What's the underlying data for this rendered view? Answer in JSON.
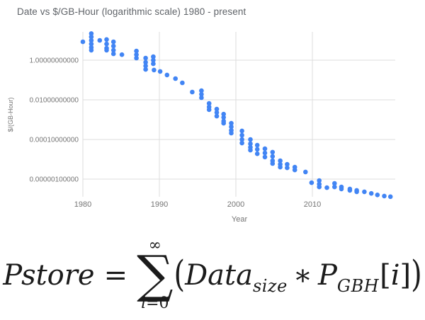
{
  "chart_data": {
    "type": "scatter",
    "title": "Date vs $/GB-Hour (logarithmic scale) 1980 - present",
    "xlabel": "Year",
    "ylabel": "$/(GB-Hour)",
    "legend": "none",
    "grid": true,
    "x_axis": {
      "min": 1980,
      "max": 2021,
      "ticks": [
        1980,
        1990,
        2000,
        2010
      ]
    },
    "y_axis": {
      "scale": "log",
      "min": 1e-07,
      "max": 30,
      "ticks": [
        {
          "value": 1,
          "label": "1.00000000000"
        },
        {
          "value": 0.01,
          "label": "0.01000000000"
        },
        {
          "value": 0.0001,
          "label": "0.00010000000"
        },
        {
          "value": 1e-06,
          "label": "0.00000100000"
        }
      ]
    },
    "series": [
      {
        "name": "$/GB-Hour",
        "color": "#4285f4",
        "points": [
          [
            1980.0,
            8.5
          ],
          [
            1981.1,
            22
          ],
          [
            1981.1,
            15
          ],
          [
            1981.1,
            10
          ],
          [
            1981.1,
            6.6
          ],
          [
            1981.1,
            4.4
          ],
          [
            1981.1,
            3.2
          ],
          [
            1982.2,
            10
          ],
          [
            1983.1,
            11
          ],
          [
            1983.1,
            6.6
          ],
          [
            1983.1,
            4.0
          ],
          [
            1983.1,
            3.2
          ],
          [
            1984.0,
            8.5
          ],
          [
            1984.0,
            5.2
          ],
          [
            1984.0,
            3.2
          ],
          [
            1984.0,
            2.1
          ],
          [
            1985.1,
            1.9
          ],
          [
            1987.0,
            2.9
          ],
          [
            1987.0,
            1.9
          ],
          [
            1987.0,
            1.28
          ],
          [
            1988.2,
            1.28
          ],
          [
            1988.2,
            0.78
          ],
          [
            1988.2,
            0.52
          ],
          [
            1988.2,
            0.34
          ],
          [
            1989.2,
            1.5
          ],
          [
            1989.2,
            1.0
          ],
          [
            1989.2,
            0.66
          ],
          [
            1989.3,
            0.32
          ],
          [
            1990.1,
            0.27
          ],
          [
            1991.0,
            0.18
          ],
          [
            1992.1,
            0.118
          ],
          [
            1993.0,
            0.072
          ],
          [
            1994.3,
            0.0247
          ],
          [
            1995.5,
            0.029
          ],
          [
            1995.5,
            0.019
          ],
          [
            1995.5,
            0.0128
          ],
          [
            1996.5,
            0.0066
          ],
          [
            1996.5,
            0.0044
          ],
          [
            1996.5,
            0.0032
          ],
          [
            1997.5,
            0.0034
          ],
          [
            1997.5,
            0.0023
          ],
          [
            1997.5,
            0.0015
          ],
          [
            1998.4,
            0.0019
          ],
          [
            1998.4,
            0.0013
          ],
          [
            1998.4,
            0.00085
          ],
          [
            1998.4,
            0.00066
          ],
          [
            1999.4,
            0.00066
          ],
          [
            1999.4,
            0.00044
          ],
          [
            1999.4,
            0.00029
          ],
          [
            1999.4,
            0.00021
          ],
          [
            2000.8,
            0.00027
          ],
          [
            2000.8,
            0.000164
          ],
          [
            2000.8,
            0.0001
          ],
          [
            2000.8,
            6.6e-05
          ],
          [
            2001.9,
            0.0001
          ],
          [
            2001.9,
            6.1e-05
          ],
          [
            2001.9,
            4e-05
          ],
          [
            2001.9,
            2.9e-05
          ],
          [
            2002.8,
            5.2e-05
          ],
          [
            2002.8,
            3.2e-05
          ],
          [
            2002.8,
            1.9e-05
          ],
          [
            2003.8,
            3.4e-05
          ],
          [
            2003.8,
            2.1e-05
          ],
          [
            2003.8,
            1.3e-05
          ],
          [
            2004.8,
            2.3e-05
          ],
          [
            2004.8,
            1.4e-05
          ],
          [
            2004.8,
            8.5e-06
          ],
          [
            2004.8,
            6.1e-06
          ],
          [
            2005.8,
            8.5e-06
          ],
          [
            2005.8,
            5.6e-06
          ],
          [
            2005.8,
            4e-06
          ],
          [
            2006.7,
            5.6e-06
          ],
          [
            2006.7,
            3.7e-06
          ],
          [
            2007.7,
            4e-06
          ],
          [
            2007.7,
            2.9e-06
          ],
          [
            2009.1,
            2.3e-06
          ],
          [
            2009.9,
            6.6e-07
          ],
          [
            2010.9,
            8.5e-07
          ],
          [
            2010.9,
            5.6e-07
          ],
          [
            2010.9,
            4e-07
          ],
          [
            2011.9,
            3.7e-07
          ],
          [
            2012.9,
            6.1e-07
          ],
          [
            2012.9,
            4e-07
          ],
          [
            2013.8,
            4e-07
          ],
          [
            2013.8,
            3.2e-07
          ],
          [
            2014.9,
            3.2e-07
          ],
          [
            2014.9,
            2.7e-07
          ],
          [
            2015.8,
            2.7e-07
          ],
          [
            2015.8,
            2.3e-07
          ],
          [
            2016.8,
            2.3e-07
          ],
          [
            2017.7,
            1.9e-07
          ],
          [
            2018.5,
            1.6e-07
          ],
          [
            2019.4,
            1.4e-07
          ],
          [
            2020.2,
            1.3e-07
          ]
        ]
      }
    ]
  },
  "styles": {
    "grid_color": "#dddddd",
    "tick_color": "#757575",
    "title_color": "#5f6368",
    "point_color": "#4285f4",
    "formula_color": "#1b1b1b"
  },
  "formula": {
    "lhs": "Pstore",
    "equals": "=",
    "sum_upper": "∞",
    "sum_symbol": "∑",
    "sum_lower_var": "i",
    "sum_lower_rest": "=0",
    "open_paren": "(",
    "term1": "Data",
    "term1_sub": "size",
    "operator": "∗",
    "term2": "P",
    "term2_sub": "GBH",
    "idx_open": "[",
    "idx_var": "i",
    "idx_close": "]",
    "close_paren": ")"
  }
}
